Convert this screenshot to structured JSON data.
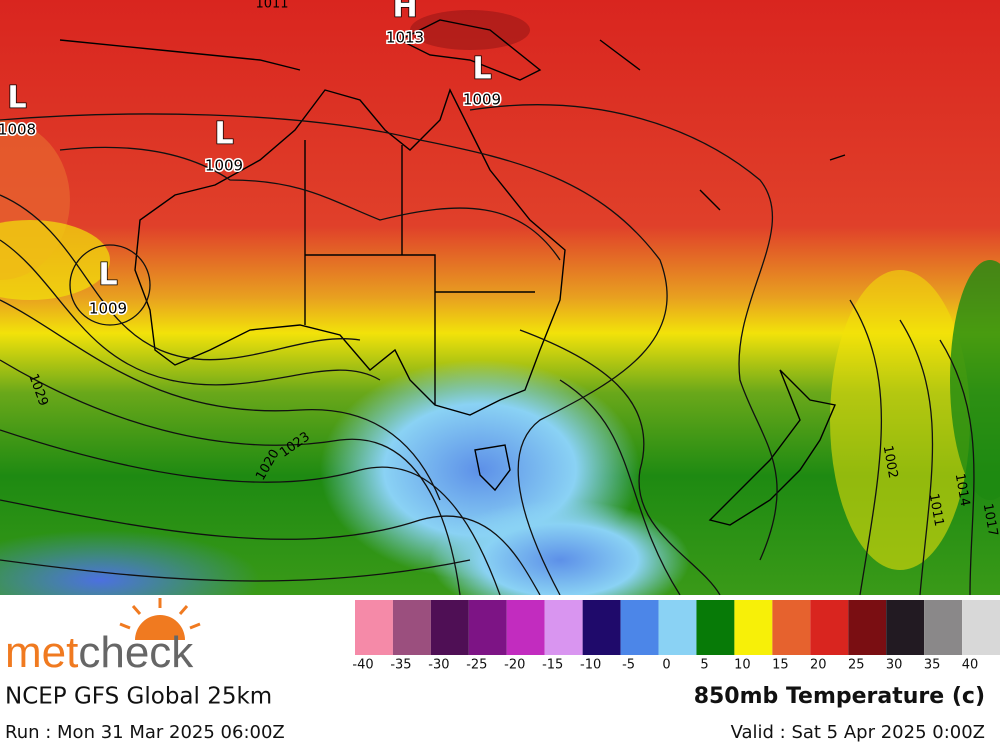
{
  "map": {
    "pressure_centres": [
      {
        "symbol": "H",
        "value": "1013"
      },
      {
        "symbol": "L",
        "value": "1009"
      },
      {
        "symbol": "L",
        "value": "1008"
      },
      {
        "symbol": "L",
        "value": "1009"
      },
      {
        "symbol": "L",
        "value": "1009"
      }
    ],
    "isobar_labels": [
      "1011",
      "1029",
      "1023",
      "1020",
      "1002",
      "1014",
      "1011",
      "1017"
    ]
  },
  "logo": {
    "parts": [
      "met",
      "check"
    ]
  },
  "model": "NCEP GFS Global 25km",
  "run": "Run : Mon 31 Mar 2025 06:00Z",
  "field": "850mb Temperature (c)",
  "valid": "Valid : Sat 5 Apr 2025 0:00Z",
  "legend": {
    "ticks": [
      -40,
      -35,
      -30,
      -25,
      -20,
      -15,
      -10,
      -5,
      0,
      5,
      10,
      15,
      20,
      25,
      30,
      35,
      40
    ],
    "colors": [
      "#f58aa8",
      "#9b4f7e",
      "#4f0f55",
      "#7d1485",
      "#c22cbf",
      "#d995f0",
      "#1f0a6b",
      "#4c86e8",
      "#8ad2f4",
      "#077a07",
      "#f7f008",
      "#e6622e",
      "#d9251f",
      "#7a0e12",
      "#221a22",
      "#8a8889",
      "#d8d8d8"
    ]
  }
}
